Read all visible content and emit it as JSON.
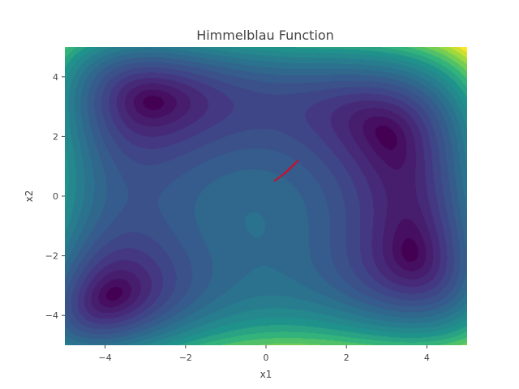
{
  "chart_data": {
    "type": "contour",
    "title": "Himmelblau Function",
    "xlabel": "x1",
    "ylabel": "x2",
    "xlim": [
      -5,
      5
    ],
    "ylim": [
      -5,
      5
    ],
    "xticks": [
      -4,
      -2,
      0,
      2,
      4
    ],
    "yticks": [
      -4,
      -2,
      0,
      2,
      4
    ],
    "function": "(x1^2 + x2 - 11)^2 + (x1 + x2^2 - 7)^2",
    "colormap": "viridis",
    "levels": 20,
    "grid": false,
    "path": {
      "color": "#c8102e",
      "points": [
        [
          0.2,
          0.5
        ],
        [
          0.45,
          0.75
        ],
        [
          0.65,
          1.0
        ],
        [
          0.8,
          1.2
        ],
        [
          0.7,
          1.05
        ],
        [
          0.5,
          0.8
        ],
        [
          0.3,
          0.6
        ],
        [
          0.2,
          0.5
        ]
      ]
    }
  }
}
